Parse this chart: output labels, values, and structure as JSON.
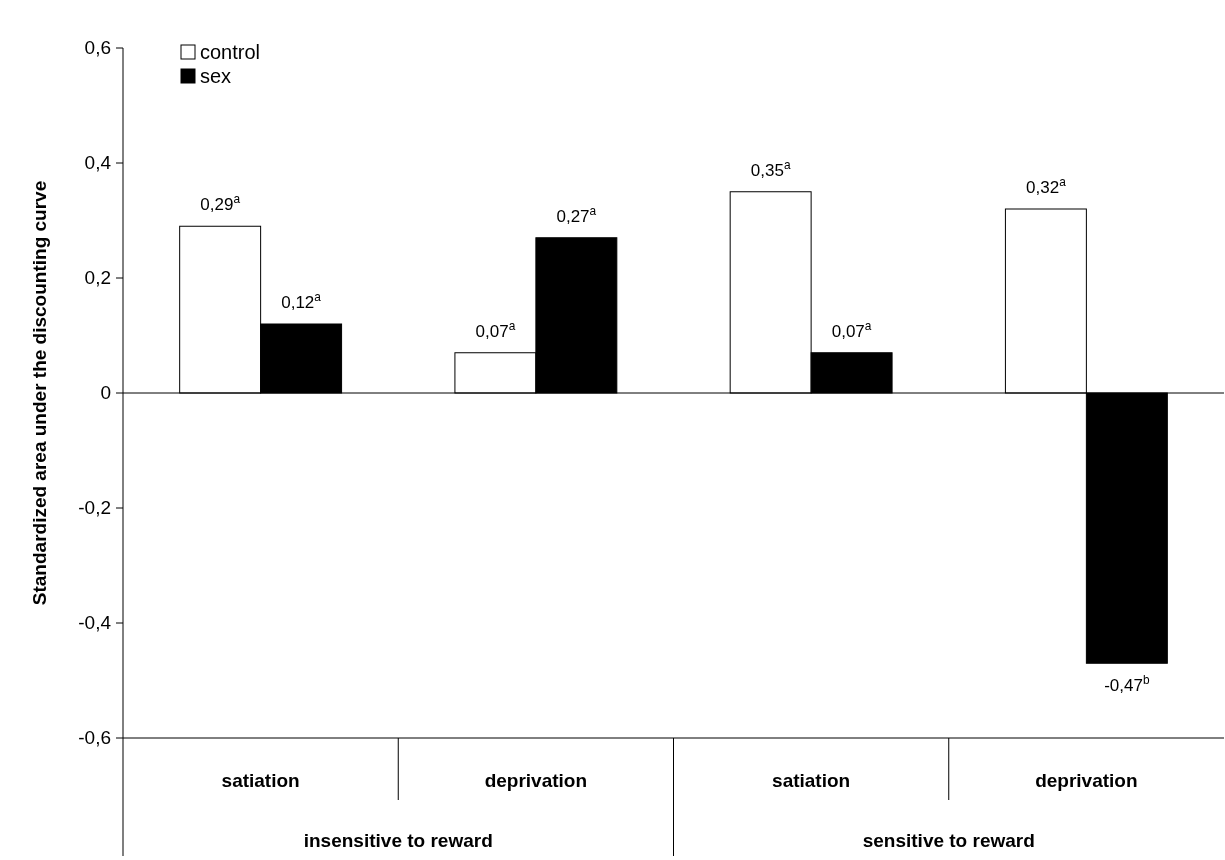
{
  "chart_data": {
    "type": "bar",
    "ylabel": "Standardized area under the discounting curve",
    "categories": [
      "satiation",
      "deprivation",
      "satiation",
      "deprivation"
    ],
    "series": [
      {
        "name": "control",
        "color": "#ffffff",
        "values": [
          0.29,
          0.07,
          0.35,
          0.32
        ],
        "value_labels": [
          "0,29$^{a}$",
          "0,07$^{a}$",
          "0,35$^{a}$",
          "0,32$^{a}$"
        ]
      },
      {
        "name": "sex",
        "color": "#000000",
        "values": [
          0.12,
          0.27,
          0.07,
          -0.47
        ],
        "value_labels": [
          "0,12$^{a}$",
          "0,27$^{a}$",
          "0,07$^{a}$",
          "-0,47$^{b}$"
        ]
      }
    ],
    "annotations": [
      "insensitive to reward",
      "sensitive to reward"
    ],
    "ylim": [
      -0.6,
      0.6
    ],
    "yticks": [
      {
        "value": -0.6,
        "label": "-0,6"
      },
      {
        "value": -0.4,
        "label": "-0,4"
      },
      {
        "value": -0.2,
        "label": "-0,2"
      },
      0,
      {
        "value": 0.2,
        "label": "0,2"
      },
      {
        "value": 0.4,
        "label": "0,4"
      },
      {
        "value": 0.6,
        "label": "0,6"
      }
    ],
    "legend": "top left"
  }
}
